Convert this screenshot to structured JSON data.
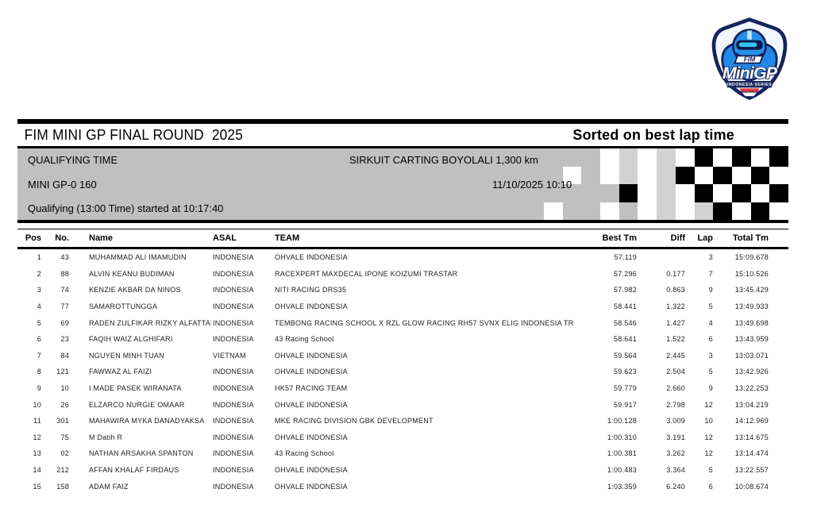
{
  "logo": {
    "fim": "FIM",
    "name": "MiniGP",
    "series": "INDONESIA SERIES",
    "colors": {
      "navy": "#15245c",
      "blue": "#2590ec",
      "light_blue": "#bfe6fb",
      "cyan": "#35c4f0",
      "red": "#e03a3a",
      "white": "#ffffff"
    }
  },
  "header": {
    "title": "FIM MINI GP FINAL ROUND  2025",
    "sorted": "Sorted on best lap time"
  },
  "info": {
    "session": "QUALIFYING TIME",
    "circuit": "SIRKUIT CARTING BOYOLALI 1,300 km",
    "class": "MINI GP-0 160",
    "datetime": "11/10/2025 10:10",
    "started": "Qualifying (13:00 Time) started at 10:17:40"
  },
  "checker": {
    "rows": [
      "...wgwgwkwkwk",
      ".w.wgwgkwkwkw",
      "....kwgwkwkwk",
      "w..w.wgwgkwkw"
    ],
    "colors": {
      "w": "#ffffff",
      "k": "#000000",
      "g": "#d2d2d2",
      ".": "transparent"
    }
  },
  "table": {
    "headers": [
      "Pos",
      "No.",
      "Name",
      "ASAL",
      "TEAM",
      "Best Tm",
      "Diff",
      "Lap",
      "Total Tm"
    ],
    "rows": [
      [
        "1",
        "43",
        "MUHAMMAD ALI IMAMUDIN",
        "INDONESIA",
        "OHVALE INDONESIA",
        "57.119",
        "",
        "3",
        "15:09.678"
      ],
      [
        "2",
        "88",
        "ALVIN KEANU BUDIMAN",
        "INDONESIA",
        "RACEXPERT MAXDECAL IPONE KOIZUMI TRASTAR",
        "57.296",
        "0.177",
        "7",
        "15:10.526"
      ],
      [
        "3",
        "74",
        "KENZIE AKBAR DA NINOS",
        "INDONESIA",
        "NITI RACING DRS35",
        "57.982",
        "0.863",
        "9",
        "13:45.429"
      ],
      [
        "4",
        "77",
        "SAMAROTTUNGGA",
        "INDONESIA",
        "OHVALE INDONESIA",
        "58.441",
        "1.322",
        "5",
        "13:49.933"
      ],
      [
        "5",
        "69",
        "RADEN ZULFIKAR RIZKY ALFATTAH",
        "INDONESIA",
        "TEMBONG RACING SCHOOL X RZL GLOW RACING RH57 SVNX ELIG INDONESIA TRASTAR",
        "58.546",
        "1.427",
        "4",
        "13:49.698"
      ],
      [
        "6",
        "23",
        "FAQIH WAIZ ALGHIFARI",
        "INDONESIA",
        "43 Racing School",
        "58.641",
        "1.522",
        "6",
        "13:43.959"
      ],
      [
        "7",
        "84",
        "NGUYEN MINH TUAN",
        "VIETNAM",
        "OHVALE INDONESIA",
        "59.564",
        "2.445",
        "3",
        "13:03.071"
      ],
      [
        "8",
        "121",
        "FAWWAZ AL FAIZI",
        "INDONESIA",
        "OHVALE INDONESIA",
        "59.623",
        "2.504",
        "5",
        "13:42.926"
      ],
      [
        "9",
        "10",
        "I MADE PASEK WIRANATA",
        "INDONESIA",
        "HK57 RACING TEAM",
        "59.779",
        "2.660",
        "9",
        "13:22.253"
      ],
      [
        "10",
        "26",
        "ELZARCO NURGIE OMAAR",
        "INDONESIA",
        "OHVALE INDONESIA",
        "59.917",
        "2.798",
        "12",
        "13:04.219"
      ],
      [
        "11",
        "301",
        "MAHAWIRA MYKA DANADYAKSA",
        "INDONESIA",
        "MKE RACING DIVISION GBK DEVELOPMENT",
        "1:00.128",
        "3.009",
        "10",
        "14:12.969"
      ],
      [
        "12",
        "75",
        "M Datih R",
        "INDONESIA",
        "OHVALE INDONESIA",
        "1:00.310",
        "3.191",
        "12",
        "13:14.675"
      ],
      [
        "13",
        "02",
        "NATHAN ARSAKHA SPANTON",
        "INDONESIA",
        "43 Racing School",
        "1:00.381",
        "3.262",
        "12",
        "13:14.474"
      ],
      [
        "14",
        "212",
        "AFFAN KHALAF FIRDAUS",
        "INDONESIA",
        "OHVALE INDONESIA",
        "1:00.483",
        "3.364",
        "5",
        "13:22.557"
      ],
      [
        "15",
        "158",
        "ADAM FAIZ",
        "INDONESIA",
        "OHVALE INDONESIA",
        "1:03.359",
        "6.240",
        "6",
        "10:08.674"
      ]
    ]
  }
}
